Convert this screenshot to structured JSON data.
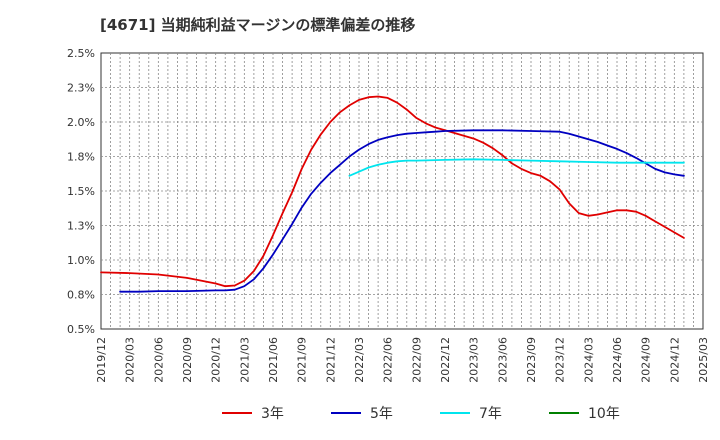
{
  "chart_data": {
    "type": "line",
    "title": "[4671]  当期純利益マージンの標準偏差の推移",
    "xlabel": "",
    "ylabel": "",
    "x_ticks": [
      "2019/12",
      "2020/03",
      "2020/06",
      "2020/09",
      "2020/12",
      "2021/03",
      "2021/06",
      "2021/09",
      "2021/12",
      "2022/03",
      "2022/06",
      "2022/09",
      "2022/12",
      "2023/03",
      "2023/06",
      "2023/09",
      "2023/12",
      "2024/03",
      "2024/06",
      "2024/09",
      "2024/12",
      "2025/03"
    ],
    "y_ticks": [
      "0.5%",
      "0.8%",
      "1.0%",
      "1.3%",
      "1.5%",
      "1.8%",
      "2.0%",
      "2.3%",
      "2.5%"
    ],
    "ylim": [
      0.5,
      2.5
    ],
    "grid": true,
    "legend_position": "bottom",
    "series": [
      {
        "name": "3年",
        "color": "#e00000",
        "points": [
          [
            "2019/12",
            0.91
          ],
          [
            "2020/03",
            0.905
          ],
          [
            "2020/06",
            0.895
          ],
          [
            "2020/09",
            0.87
          ],
          [
            "2020/12",
            0.83
          ],
          [
            "2021/01",
            0.81
          ],
          [
            "2021/02",
            0.815
          ],
          [
            "2021/03",
            0.85
          ],
          [
            "2021/04",
            0.92
          ],
          [
            "2021/05",
            1.03
          ],
          [
            "2021/06",
            1.18
          ],
          [
            "2021/07",
            1.34
          ],
          [
            "2021/08",
            1.49
          ],
          [
            "2021/09",
            1.66
          ],
          [
            "2021/10",
            1.8
          ],
          [
            "2021/11",
            1.91
          ],
          [
            "2021/12",
            2.0
          ],
          [
            "2022/01",
            2.07
          ],
          [
            "2022/02",
            2.12
          ],
          [
            "2022/03",
            2.16
          ],
          [
            "2022/04",
            2.18
          ],
          [
            "2022/05",
            2.185
          ],
          [
            "2022/06",
            2.175
          ],
          [
            "2022/07",
            2.14
          ],
          [
            "2022/08",
            2.09
          ],
          [
            "2022/09",
            2.03
          ],
          [
            "2022/10",
            1.99
          ],
          [
            "2022/11",
            1.96
          ],
          [
            "2022/12",
            1.94
          ],
          [
            "2023/03",
            1.88
          ],
          [
            "2023/04",
            1.85
          ],
          [
            "2023/05",
            1.81
          ],
          [
            "2023/06",
            1.76
          ],
          [
            "2023/07",
            1.7
          ],
          [
            "2023/08",
            1.66
          ],
          [
            "2023/09",
            1.63
          ],
          [
            "2023/10",
            1.61
          ],
          [
            "2023/11",
            1.57
          ],
          [
            "2023/12",
            1.51
          ],
          [
            "2024/01",
            1.41
          ],
          [
            "2024/02",
            1.34
          ],
          [
            "2024/03",
            1.32
          ],
          [
            "2024/04",
            1.33
          ],
          [
            "2024/05",
            1.345
          ],
          [
            "2024/06",
            1.36
          ],
          [
            "2024/07",
            1.36
          ],
          [
            "2024/08",
            1.35
          ],
          [
            "2024/09",
            1.32
          ],
          [
            "2024/10",
            1.28
          ],
          [
            "2024/11",
            1.24
          ],
          [
            "2024/12",
            1.2
          ],
          [
            "2025/01",
            1.16
          ]
        ]
      },
      {
        "name": "5年",
        "color": "#0000c0",
        "points": [
          [
            "2020/02",
            0.77
          ],
          [
            "2020/04",
            0.77
          ],
          [
            "2020/06",
            0.775
          ],
          [
            "2020/09",
            0.775
          ],
          [
            "2020/12",
            0.78
          ],
          [
            "2021/01",
            0.78
          ],
          [
            "2021/02",
            0.785
          ],
          [
            "2021/03",
            0.81
          ],
          [
            "2021/04",
            0.86
          ],
          [
            "2021/05",
            0.94
          ],
          [
            "2021/06",
            1.04
          ],
          [
            "2021/07",
            1.15
          ],
          [
            "2021/08",
            1.26
          ],
          [
            "2021/09",
            1.38
          ],
          [
            "2021/10",
            1.48
          ],
          [
            "2021/11",
            1.56
          ],
          [
            "2021/12",
            1.63
          ],
          [
            "2022/01",
            1.69
          ],
          [
            "2022/02",
            1.75
          ],
          [
            "2022/03",
            1.8
          ],
          [
            "2022/04",
            1.84
          ],
          [
            "2022/05",
            1.87
          ],
          [
            "2022/06",
            1.89
          ],
          [
            "2022/07",
            1.905
          ],
          [
            "2022/08",
            1.915
          ],
          [
            "2022/09",
            1.92
          ],
          [
            "2022/10",
            1.925
          ],
          [
            "2022/11",
            1.93
          ],
          [
            "2022/12",
            1.935
          ],
          [
            "2023/03",
            1.94
          ],
          [
            "2023/06",
            1.94
          ],
          [
            "2023/09",
            1.935
          ],
          [
            "2023/12",
            1.93
          ],
          [
            "2024/01",
            1.915
          ],
          [
            "2024/02",
            1.895
          ],
          [
            "2024/03",
            1.875
          ],
          [
            "2024/04",
            1.855
          ],
          [
            "2024/05",
            1.83
          ],
          [
            "2024/06",
            1.805
          ],
          [
            "2024/07",
            1.775
          ],
          [
            "2024/08",
            1.74
          ],
          [
            "2024/09",
            1.7
          ],
          [
            "2024/10",
            1.66
          ],
          [
            "2024/11",
            1.635
          ],
          [
            "2024/12",
            1.62
          ],
          [
            "2025/01",
            1.61
          ]
        ]
      },
      {
        "name": "7年",
        "color": "#00e5ee",
        "points": [
          [
            "2022/02",
            1.61
          ],
          [
            "2022/03",
            1.64
          ],
          [
            "2022/04",
            1.67
          ],
          [
            "2022/05",
            1.69
          ],
          [
            "2022/06",
            1.705
          ],
          [
            "2022/07",
            1.715
          ],
          [
            "2022/08",
            1.72
          ],
          [
            "2022/09",
            1.72
          ],
          [
            "2022/12",
            1.725
          ],
          [
            "2023/03",
            1.73
          ],
          [
            "2023/06",
            1.725
          ],
          [
            "2023/09",
            1.72
          ],
          [
            "2023/12",
            1.715
          ],
          [
            "2024/03",
            1.71
          ],
          [
            "2024/06",
            1.705
          ],
          [
            "2024/09",
            1.705
          ],
          [
            "2024/12",
            1.705
          ],
          [
            "2025/01",
            1.705
          ]
        ]
      },
      {
        "name": "10年",
        "color": "#008000",
        "points": []
      }
    ]
  }
}
